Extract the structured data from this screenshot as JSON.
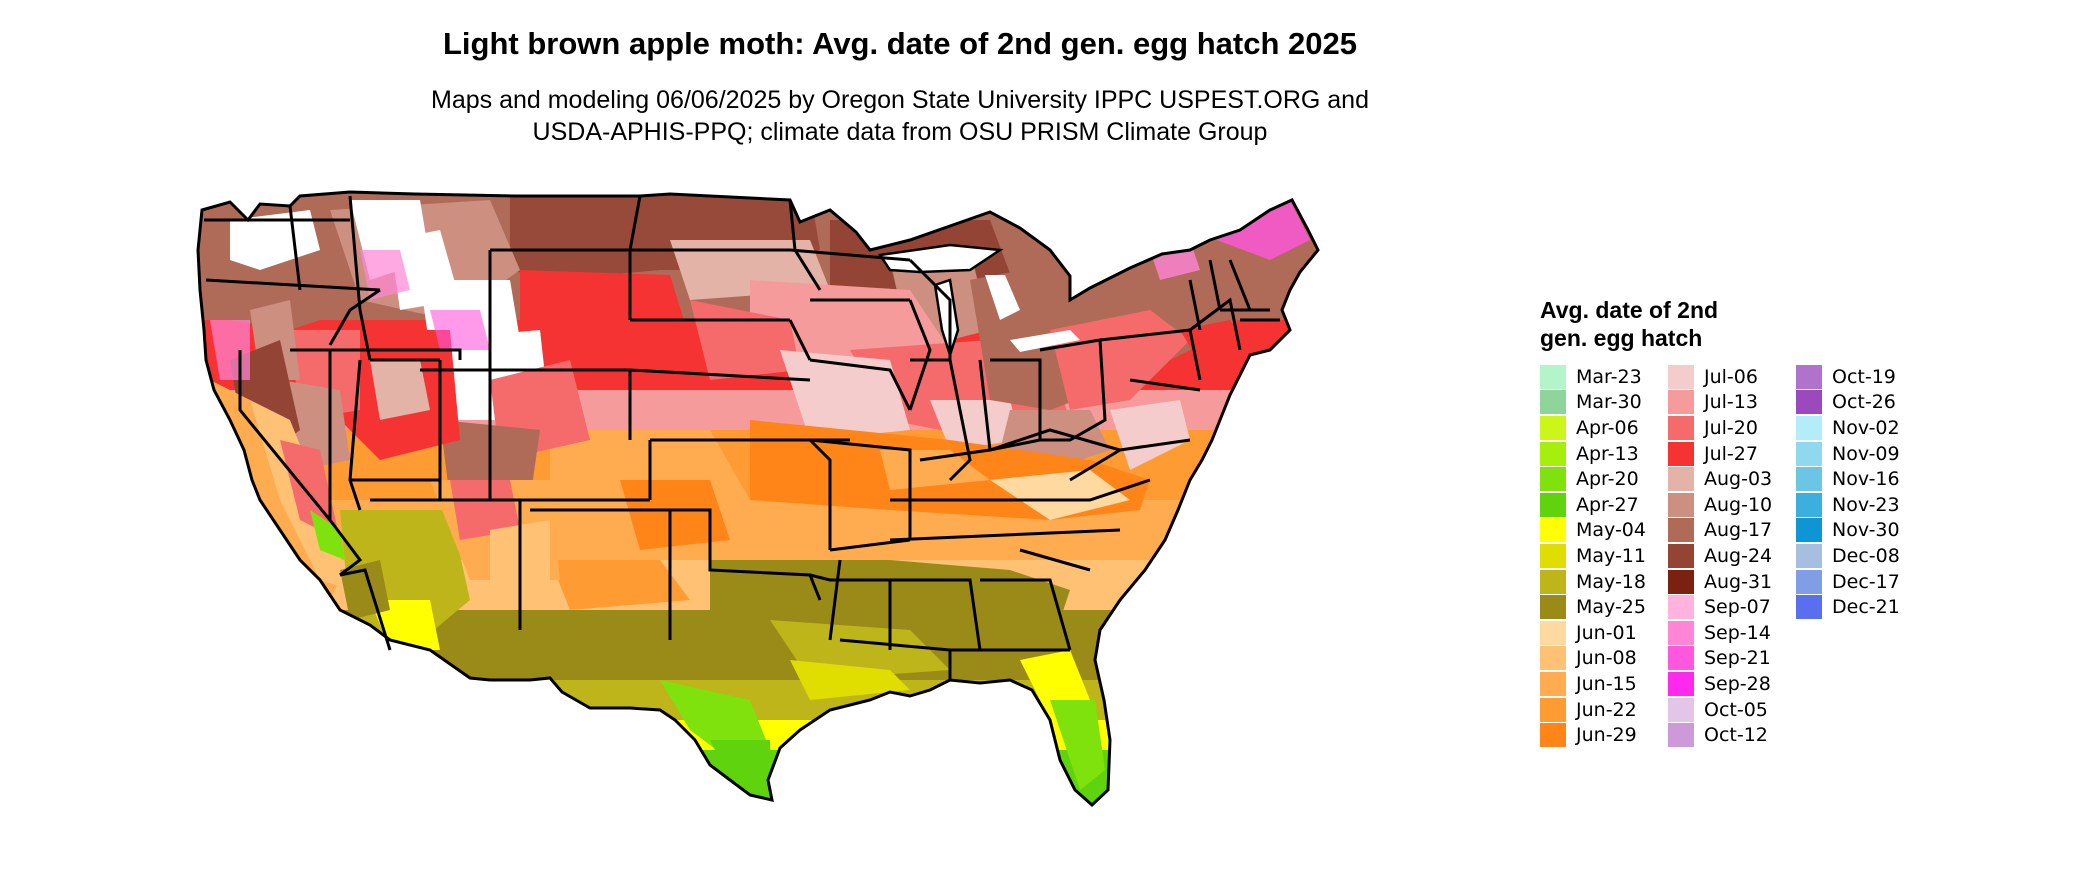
{
  "title": "Light brown apple moth: Avg. date of 2nd gen. egg hatch 2025",
  "subtitle_line1": "Maps and modeling 06/06/2025 by Oregon State University IPPC USPEST.ORG and",
  "subtitle_line2": "USDA-APHIS-PPQ; climate data from OSU PRISM Climate Group",
  "legend": {
    "title": "Avg. date of 2nd gen. egg hatch",
    "columns": [
      [
        {
          "label": "Mar-23",
          "color": "#b3f5c9"
        },
        {
          "label": "Mar-30",
          "color": "#8fd49a"
        },
        {
          "label": "Apr-06",
          "color": "#ccf51a"
        },
        {
          "label": "Apr-13",
          "color": "#a6ee0e"
        },
        {
          "label": "Apr-20",
          "color": "#7fe20c"
        },
        {
          "label": "Apr-27",
          "color": "#5fd40e"
        },
        {
          "label": "May-04",
          "color": "#ffff00"
        },
        {
          "label": "May-11",
          "color": "#e0dd00"
        },
        {
          "label": "May-18",
          "color": "#bdb51a"
        },
        {
          "label": "May-25",
          "color": "#9a8a18"
        },
        {
          "label": "Jun-01",
          "color": "#ffd9a0"
        },
        {
          "label": "Jun-08",
          "color": "#ffc173"
        },
        {
          "label": "Jun-15",
          "color": "#ffab4f"
        },
        {
          "label": "Jun-22",
          "color": "#ff9b33"
        },
        {
          "label": "Jun-29",
          "color": "#ff8519"
        }
      ],
      [
        {
          "label": "Jul-06",
          "color": "#f5cccc"
        },
        {
          "label": "Jul-13",
          "color": "#f59b9b"
        },
        {
          "label": "Jul-20",
          "color": "#f56a6a"
        },
        {
          "label": "Jul-27",
          "color": "#f53333"
        },
        {
          "label": "Aug-03",
          "color": "#e3b3a8"
        },
        {
          "label": "Aug-10",
          "color": "#cc8f80"
        },
        {
          "label": "Aug-17",
          "color": "#b06a58"
        },
        {
          "label": "Aug-24",
          "color": "#934434"
        },
        {
          "label": "Aug-31",
          "color": "#7a2110"
        },
        {
          "label": "Sep-07",
          "color": "#ffb3dd"
        },
        {
          "label": "Sep-14",
          "color": "#ff85d6"
        },
        {
          "label": "Sep-21",
          "color": "#ff57de"
        },
        {
          "label": "Sep-28",
          "color": "#ff29ee"
        },
        {
          "label": "Oct-05",
          "color": "#e3c5e8"
        },
        {
          "label": "Oct-12",
          "color": "#cc99d9"
        }
      ],
      [
        {
          "label": "Oct-19",
          "color": "#b072cc"
        },
        {
          "label": "Oct-26",
          "color": "#9a4abd"
        },
        {
          "label": "Nov-02",
          "color": "#b3edfa"
        },
        {
          "label": "Nov-09",
          "color": "#8fd9ee"
        },
        {
          "label": "Nov-16",
          "color": "#6bc5e5"
        },
        {
          "label": "Nov-23",
          "color": "#3bb0e0"
        },
        {
          "label": "Nov-30",
          "color": "#0f94d4"
        },
        {
          "label": "Dec-08",
          "color": "#a6bfe0"
        },
        {
          "label": "Dec-17",
          "color": "#7f9ee6"
        },
        {
          "label": "Dec-21",
          "color": "#5a6ef0"
        }
      ]
    ]
  }
}
